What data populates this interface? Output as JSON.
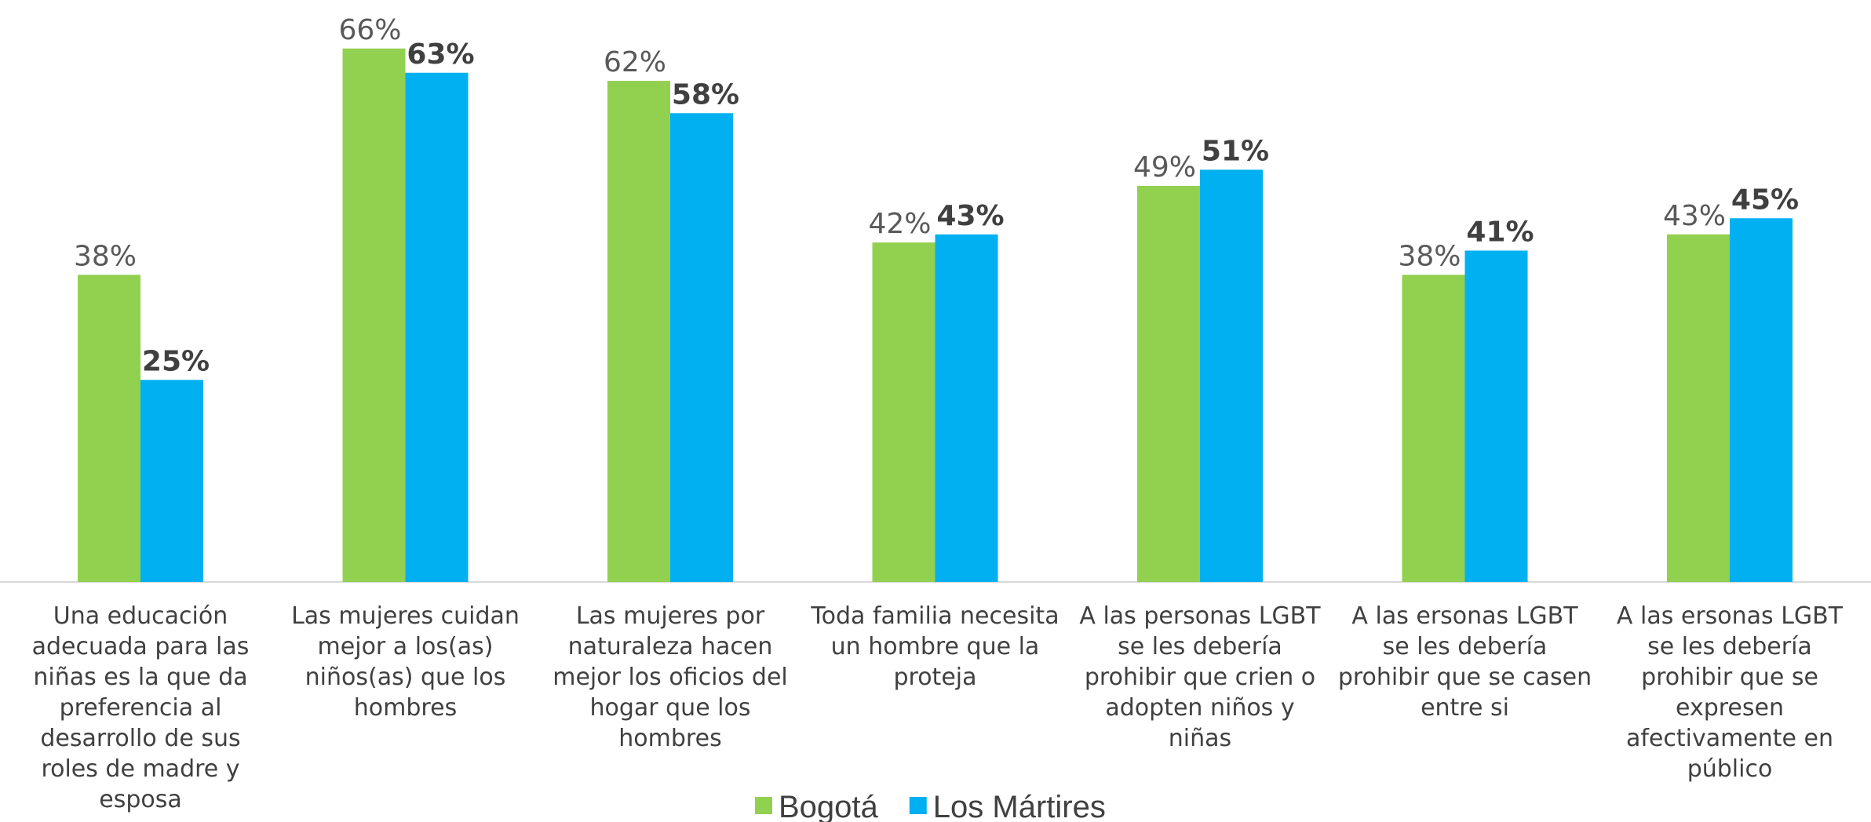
{
  "chart_data": {
    "type": "bar",
    "categories": [
      "Una educación adecuada para las niñas es la que da preferencia al desarrollo de sus roles de madre y esposa",
      "Las mujeres cuidan mejor a los(as) niños(as) que los hombres",
      "Las mujeres por naturaleza hacen mejor los oficios del hogar que los hombres",
      "Toda familia necesita un hombre que la proteja",
      "A las personas LGBT se les debería prohibir que crien o adopten niños y niñas",
      "A las ersonas LGBT se les debería prohibir que se casen entre si",
      "A las ersonas LGBT se les debería prohibir que se expresen afectivamente en público"
    ],
    "series": [
      {
        "name": "Bogotá",
        "color": "#92d050",
        "values": [
          38,
          66,
          62,
          42,
          49,
          38,
          43
        ],
        "value_labels": [
          "38%",
          "66%",
          "62%",
          "42%",
          "49%",
          "38%",
          "43%"
        ]
      },
      {
        "name": "Los Mártires",
        "color": "#00b0f0",
        "values": [
          25,
          63,
          58,
          43,
          51,
          41,
          45
        ],
        "value_labels": [
          "25%",
          "63%",
          "58%",
          "43%",
          "51%",
          "41%",
          "45%"
        ]
      }
    ],
    "ylim": [
      0,
      72
    ],
    "legend": "bottom"
  }
}
